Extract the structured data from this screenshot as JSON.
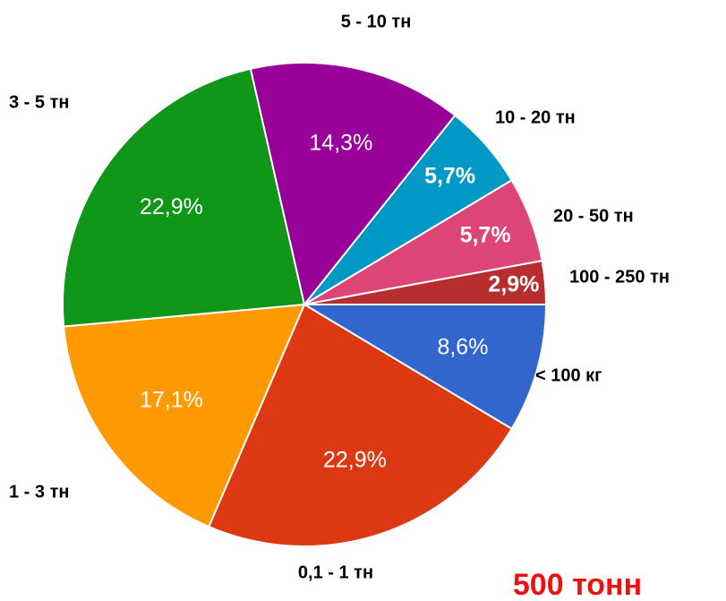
{
  "chart_data": {
    "type": "pie",
    "categories": [
      "< 100 кг",
      "0,1 - 1 тн",
      "1 - 3 тн",
      "3 - 5 тн",
      "5 - 10 тн",
      "10 - 20 тн",
      "20 - 50 тн",
      "100 - 250 тн"
    ],
    "values": [
      8.6,
      22.9,
      17.1,
      22.9,
      14.3,
      5.7,
      5.7,
      2.9
    ],
    "value_labels": [
      "8,6%",
      "22,9%",
      "17,1%",
      "22,9%",
      "14,3%",
      "5,7%",
      "5,7%",
      "2,9%"
    ],
    "colors": [
      "#3366cc",
      "#dc3912",
      "#ff9900",
      "#109618",
      "#990099",
      "#0099c6",
      "#dd4477",
      "#b82e2e"
    ],
    "annotation": "500 тонн"
  }
}
